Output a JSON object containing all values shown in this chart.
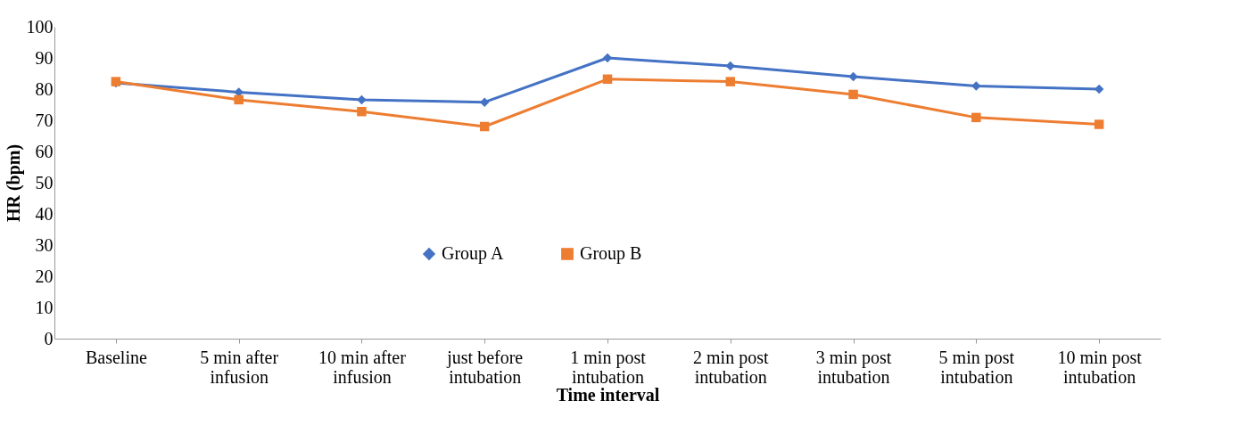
{
  "chart_data": {
    "type": "line",
    "xlabel": "Time interval",
    "ylabel": "HR (bpm)",
    "categories": [
      "Baseline",
      "5 min after\ninfusion",
      "10 min after\ninfusion",
      "just before\nintubation",
      "1 min post\nintubation",
      "2 min post\nintubation",
      "3 min post\nintubation",
      "5 min post\nintubation",
      "10 min post\nintubation"
    ],
    "series": [
      {
        "name": "Group A",
        "color": "#4472c4",
        "marker": "diamond",
        "values": [
          82,
          79,
          76.6,
          75.8,
          90,
          87.4,
          84,
          81,
          80
        ]
      },
      {
        "name": "Group B",
        "color": "#ed7d31",
        "marker": "square",
        "values": [
          82.4,
          76.6,
          72.8,
          68,
          83.2,
          82.4,
          78.3,
          70.9,
          68.7
        ]
      }
    ],
    "ylim": [
      0,
      100
    ],
    "yticks": [
      0,
      10,
      20,
      30,
      40,
      50,
      60,
      70,
      80,
      90,
      100
    ],
    "grid": false,
    "legend": "center"
  }
}
